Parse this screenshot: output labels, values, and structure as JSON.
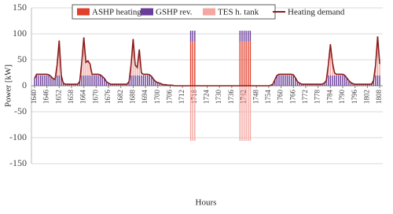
{
  "chart_data": {
    "type": "bar",
    "x_label": "Hours",
    "y_label": "Power [kW]",
    "xlim": [
      1638.5,
      1809.5
    ],
    "ylim": [
      -150,
      150
    ],
    "yticks": [
      -150,
      -100,
      -50,
      0,
      50,
      100,
      150
    ],
    "xticks": [
      1640,
      1646,
      1652,
      1658,
      1664,
      1670,
      1676,
      1682,
      1688,
      1694,
      1700,
      1706,
      1712,
      1718,
      1724,
      1730,
      1736,
      1742,
      1748,
      1754,
      1760,
      1766,
      1772,
      1778,
      1784,
      1790,
      1796,
      1802,
      1808
    ],
    "grid": true,
    "legend": "top",
    "x": [
      1640,
      1641,
      1642,
      1643,
      1644,
      1645,
      1646,
      1647,
      1648,
      1649,
      1650,
      1651,
      1652,
      1653,
      1654,
      1655,
      1656,
      1657,
      1658,
      1659,
      1660,
      1661,
      1662,
      1663,
      1664,
      1665,
      1666,
      1667,
      1668,
      1669,
      1670,
      1671,
      1672,
      1673,
      1674,
      1675,
      1676,
      1677,
      1678,
      1679,
      1680,
      1681,
      1682,
      1683,
      1684,
      1685,
      1686,
      1687,
      1688,
      1689,
      1690,
      1691,
      1692,
      1693,
      1694,
      1695,
      1696,
      1697,
      1698,
      1699,
      1700,
      1701,
      1702,
      1703,
      1704,
      1705,
      1706,
      1707,
      1708,
      1709,
      1710,
      1711,
      1712,
      1713,
      1714,
      1715,
      1716,
      1717,
      1718,
      1719,
      1720,
      1721,
      1722,
      1723,
      1724,
      1725,
      1726,
      1727,
      1728,
      1729,
      1730,
      1731,
      1732,
      1733,
      1734,
      1735,
      1736,
      1737,
      1738,
      1739,
      1740,
      1741,
      1742,
      1743,
      1744,
      1745,
      1746,
      1747,
      1748,
      1749,
      1750,
      1751,
      1752,
      1753,
      1754,
      1755,
      1756,
      1757,
      1758,
      1759,
      1760,
      1761,
      1762,
      1763,
      1764,
      1765,
      1766,
      1767,
      1768,
      1769,
      1770,
      1771,
      1772,
      1773,
      1774,
      1775,
      1776,
      1777,
      1778,
      1779,
      1780,
      1781,
      1782,
      1783,
      1784,
      1785,
      1786,
      1787,
      1788,
      1789,
      1790,
      1791,
      1792,
      1793,
      1794,
      1795,
      1796,
      1797,
      1798,
      1799,
      1800,
      1801,
      1802,
      1803,
      1804,
      1805,
      1806,
      1807,
      1808
    ],
    "series": [
      {
        "name": "ASHP heating",
        "color": "#e0402c",
        "type": "bar",
        "values": [
          0,
          0,
          0,
          0,
          0,
          0,
          0,
          0,
          0,
          0,
          0,
          0,
          0,
          0,
          0,
          0,
          0,
          0,
          0,
          0,
          0,
          0,
          0,
          0,
          0,
          0,
          0,
          0,
          0,
          0,
          0,
          0,
          0,
          0,
          0,
          0,
          0,
          0,
          0,
          0,
          0,
          0,
          0,
          0,
          0,
          0,
          0,
          0,
          0,
          0,
          0,
          0,
          0,
          0,
          0,
          0,
          0,
          0,
          0,
          0,
          0,
          0,
          0,
          0,
          0,
          0,
          0,
          0,
          0,
          0,
          0,
          0,
          0,
          0,
          0,
          0,
          85,
          85,
          85,
          0,
          0,
          0,
          0,
          0,
          0,
          0,
          0,
          0,
          0,
          0,
          0,
          0,
          0,
          0,
          0,
          0,
          0,
          0,
          0,
          0,
          85,
          85,
          85,
          85,
          85,
          85,
          0,
          0,
          0,
          0,
          0,
          0,
          0,
          0,
          0,
          0,
          0,
          0,
          0,
          0,
          0,
          0,
          0,
          0,
          0,
          0,
          0,
          0,
          0,
          0,
          0,
          0,
          0,
          0,
          0,
          0,
          0,
          0,
          0,
          0,
          0,
          0,
          0,
          0,
          0,
          0,
          0,
          0,
          0,
          0,
          0,
          0,
          0,
          0,
          0,
          0,
          0,
          0,
          0,
          0,
          0,
          0,
          0,
          0,
          0,
          0,
          0,
          0,
          0
        ]
      },
      {
        "name": "GSHP rev.",
        "color": "#6a3d9a",
        "type": "bar",
        "values": [
          14,
          20,
          20,
          20,
          20,
          20,
          20,
          20,
          18,
          14,
          12,
          20,
          20,
          20,
          5,
          3,
          3,
          3,
          3,
          3,
          3,
          3,
          8,
          20,
          20,
          20,
          20,
          20,
          20,
          20,
          20,
          20,
          20,
          18,
          14,
          8,
          5,
          3,
          3,
          3,
          3,
          3,
          3,
          3,
          3,
          3,
          8,
          20,
          20,
          20,
          20,
          20,
          20,
          20,
          20,
          20,
          20,
          18,
          12,
          8,
          6,
          5,
          3,
          2,
          2,
          1,
          1,
          1,
          0,
          0,
          0,
          0,
          0,
          0,
          0,
          0,
          21,
          21,
          21,
          0,
          0,
          0,
          0,
          0,
          0,
          0,
          0,
          0,
          0,
          0,
          0,
          0,
          0,
          0,
          0,
          0,
          0,
          0,
          0,
          0,
          21,
          21,
          21,
          21,
          21,
          21,
          0,
          0,
          0,
          0,
          0,
          0,
          0,
          0,
          0,
          1,
          3,
          12,
          20,
          20,
          20,
          20,
          20,
          20,
          20,
          20,
          20,
          15,
          8,
          5,
          3,
          3,
          3,
          3,
          3,
          3,
          3,
          3,
          3,
          3,
          3,
          5,
          10,
          20,
          20,
          20,
          20,
          20,
          20,
          20,
          20,
          20,
          15,
          10,
          6,
          4,
          3,
          3,
          3,
          3,
          3,
          3,
          3,
          3,
          3,
          10,
          20,
          20,
          20
        ]
      },
      {
        "name": "TES h. tank",
        "color": "#f4a6a0",
        "type": "bar",
        "values": [
          0,
          0,
          0,
          0,
          0,
          0,
          0,
          1,
          0,
          0,
          0,
          20,
          67,
          0,
          0,
          0,
          0,
          0,
          0,
          0,
          0,
          0,
          0,
          25,
          73,
          25,
          28,
          22,
          2,
          2,
          2,
          2,
          1,
          0,
          0,
          0,
          0,
          0,
          0,
          0,
          0,
          0,
          0,
          0,
          0,
          0,
          0,
          20,
          70,
          20,
          15,
          50,
          5,
          2,
          2,
          2,
          1,
          0,
          0,
          0,
          0,
          0,
          0,
          0,
          0,
          0,
          0,
          0,
          0,
          0,
          0,
          0,
          0,
          0,
          0,
          0,
          -106,
          -106,
          -106,
          0,
          0,
          0,
          0,
          0,
          0,
          0,
          0,
          0,
          0,
          0,
          0,
          0,
          0,
          0,
          0,
          0,
          0,
          0,
          0,
          0,
          -106,
          -106,
          -106,
          -106,
          -106,
          -106,
          0,
          0,
          0,
          0,
          0,
          0,
          0,
          0,
          0,
          0,
          0,
          0,
          0,
          2,
          2,
          2,
          2,
          2,
          2,
          2,
          1,
          0,
          0,
          0,
          0,
          0,
          0,
          0,
          0,
          0,
          0,
          0,
          0,
          0,
          0,
          0,
          0,
          20,
          60,
          25,
          5,
          2,
          2,
          2,
          2,
          0,
          0,
          0,
          0,
          0,
          0,
          0,
          0,
          0,
          0,
          0,
          0,
          0,
          0,
          0,
          20,
          75,
          22
        ]
      },
      {
        "name": "Heating demand",
        "color": "#8b1a1a",
        "type": "line",
        "values": [
          14,
          22,
          22,
          22,
          22,
          22,
          22,
          21,
          18,
          14,
          12,
          40,
          87,
          20,
          5,
          3,
          3,
          3,
          3,
          3,
          3,
          3,
          8,
          45,
          93,
          45,
          48,
          42,
          22,
          22,
          22,
          22,
          21,
          18,
          14,
          8,
          5,
          3,
          3,
          3,
          3,
          3,
          3,
          3,
          3,
          3,
          8,
          40,
          90,
          40,
          35,
          70,
          25,
          22,
          22,
          22,
          21,
          18,
          12,
          8,
          6,
          5,
          3,
          2,
          2,
          1,
          1,
          1,
          0,
          0,
          0,
          0,
          0,
          0,
          0,
          0,
          0,
          0,
          0,
          0,
          0,
          0,
          0,
          0,
          0,
          0,
          0,
          0,
          0,
          0,
          0,
          0,
          0,
          0,
          0,
          0,
          0,
          0,
          0,
          0,
          0,
          0,
          0,
          0,
          0,
          0,
          0,
          0,
          0,
          0,
          0,
          0,
          0,
          0,
          0,
          1,
          3,
          12,
          20,
          22,
          22,
          22,
          22,
          22,
          22,
          22,
          21,
          15,
          8,
          5,
          3,
          3,
          3,
          3,
          3,
          3,
          3,
          3,
          3,
          3,
          3,
          5,
          10,
          40,
          80,
          45,
          25,
          22,
          22,
          22,
          22,
          20,
          15,
          10,
          6,
          4,
          3,
          3,
          3,
          3,
          3,
          3,
          3,
          3,
          3,
          10,
          40,
          95,
          42
        ]
      }
    ]
  }
}
